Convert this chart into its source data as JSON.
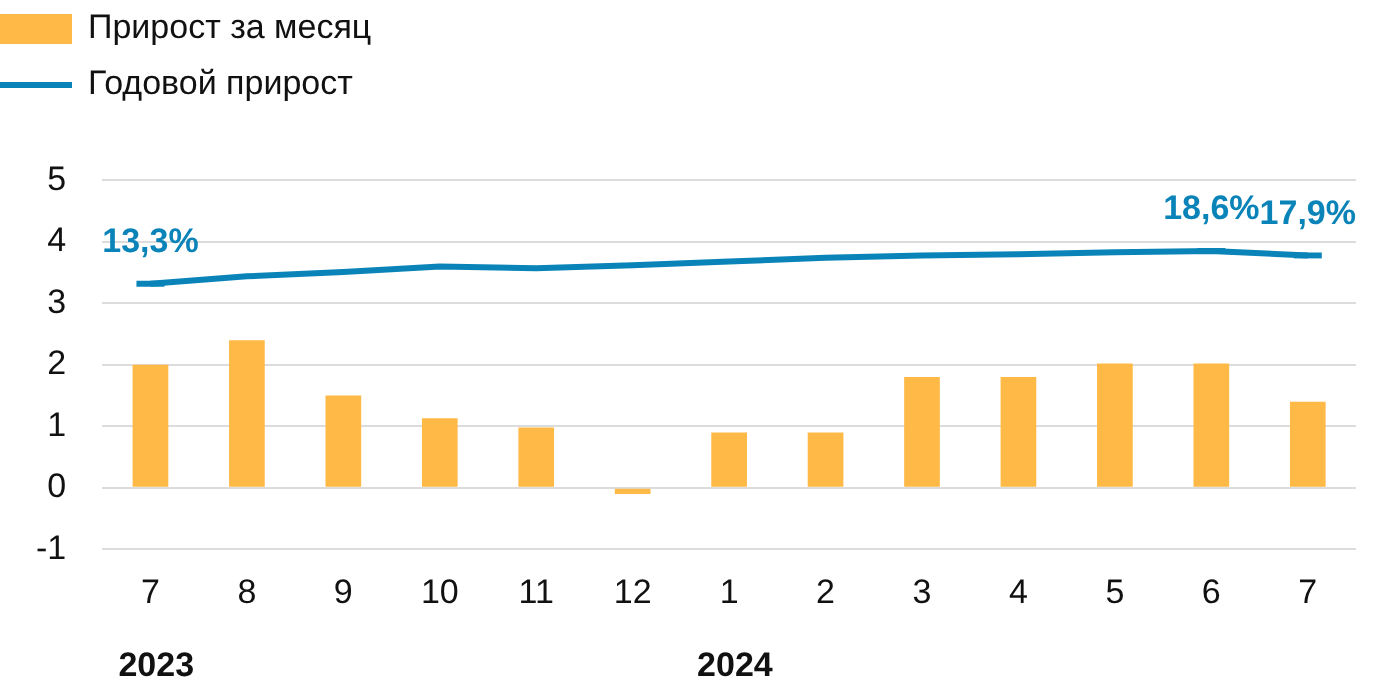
{
  "chart_data": {
    "type": "bar",
    "categories": [
      "7",
      "8",
      "9",
      "10",
      "11",
      "12",
      "1",
      "2",
      "3",
      "4",
      "5",
      "6",
      "7"
    ],
    "series": [
      {
        "name": "Прирост за месяц",
        "color": "#ffb946",
        "values": [
          2.0,
          2.4,
          1.5,
          1.13,
          0.98,
          -0.1,
          0.9,
          0.9,
          1.8,
          1.8,
          2.02,
          2.02,
          1.4
        ]
      },
      {
        "name": "Годовой прирост",
        "type": "line",
        "axis": "y2",
        "color": "#0a84b8",
        "values": [
          13.3,
          14.5,
          15.2,
          16.1,
          15.8,
          16.3,
          16.9,
          17.5,
          17.9,
          18.1,
          18.4,
          18.6,
          17.9
        ],
        "value_labels": [
          "13,3%",
          null,
          null,
          null,
          null,
          null,
          null,
          null,
          null,
          null,
          null,
          "18,6%",
          "17,9%"
        ]
      }
    ],
    "ylim": [
      -1,
      5
    ],
    "yticks": [
      -1,
      0,
      1,
      2,
      3,
      4,
      5
    ],
    "y2lim": [
      -29.9,
      30.1
    ],
    "grid": "y",
    "legend": "top left",
    "annotations": [
      "2023",
      "2024"
    ]
  }
}
